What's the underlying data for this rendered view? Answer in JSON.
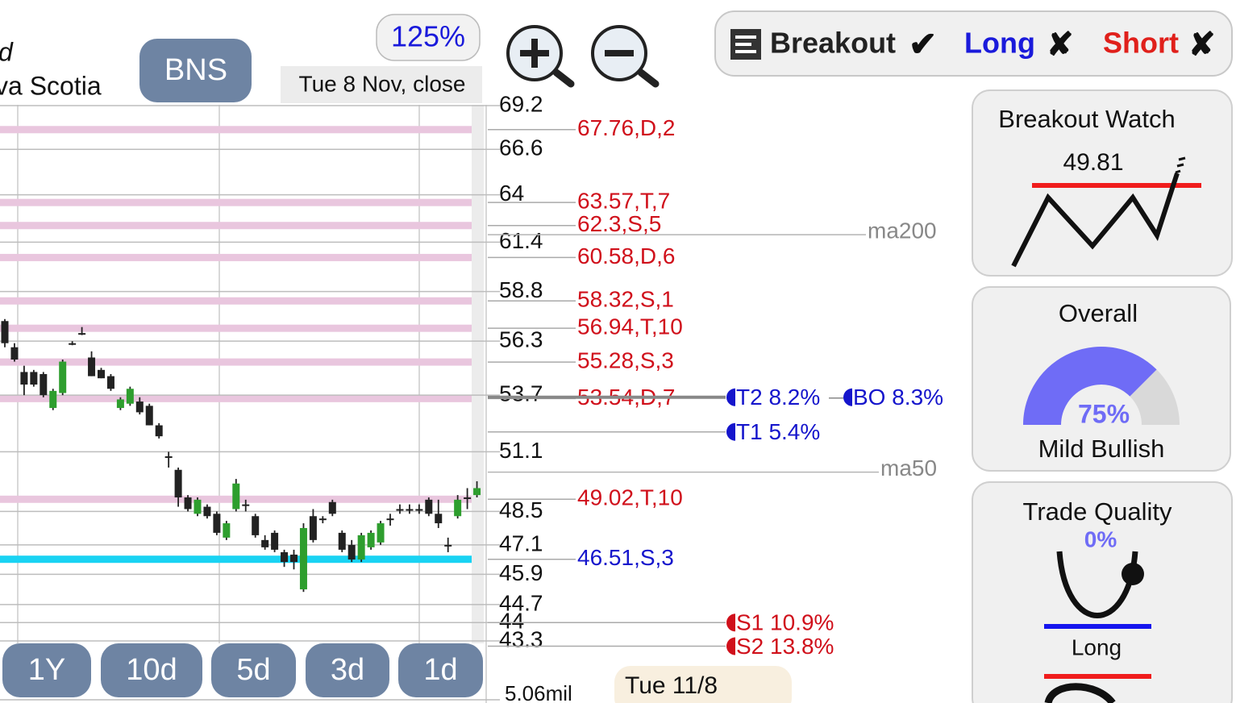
{
  "header": {
    "name_fragment_1": "d",
    "name_fragment_2": "va Scotia",
    "ticker": "BNS",
    "zoom": "125%",
    "date": "Tue 8 Nov, close"
  },
  "signals": [
    {
      "label": "Breakout",
      "mark": "✔",
      "color": "#222222"
    },
    {
      "label": "Long",
      "mark": "✘",
      "color": "#1a1adb"
    },
    {
      "label": "Short",
      "mark": "✘",
      "color": "#e0201b"
    }
  ],
  "chart_data": {
    "type": "candlestick",
    "categories": [
      null,
      null,
      null,
      null,
      null,
      null,
      null,
      null,
      null,
      null,
      null,
      null,
      null,
      null,
      null,
      null,
      null,
      null,
      null,
      null,
      null,
      null,
      null,
      null,
      null,
      null,
      null,
      null,
      null,
      null,
      null,
      null,
      null,
      null,
      null,
      null,
      null,
      null,
      null,
      null,
      null,
      null,
      null,
      null,
      null,
      null,
      null,
      null,
      null,
      null
    ],
    "open": [
      57.3,
      56.0,
      54.8,
      54.8,
      54.7,
      53.1,
      53.8,
      56.2,
      56.7,
      55.5,
      54.9,
      54.6,
      53.1,
      53.3,
      53.4,
      53.2,
      52.3,
      50.9,
      50.3,
      49.1,
      48.4,
      48.7,
      48.4,
      47.4,
      48.6,
      48.8,
      48.3,
      47.3,
      47.6,
      46.8,
      46.7,
      45.3,
      48.3,
      48.2,
      48.9,
      47.6,
      47.1,
      46.5,
      47.0,
      47.2,
      48.2,
      48.6,
      48.6,
      48.6,
      49.0,
      48.4,
      47.1,
      48.3,
      49.1,
      49.2
    ],
    "high": [
      57.4,
      56.2,
      55.1,
      54.9,
      54.8,
      54.0,
      55.4,
      56.3,
      57.0,
      55.8,
      55.0,
      54.7,
      53.6,
      54.1,
      53.6,
      53.3,
      52.4,
      51.1,
      50.4,
      49.2,
      49.1,
      48.8,
      48.5,
      48.1,
      49.9,
      49.0,
      48.4,
      47.5,
      47.7,
      46.9,
      46.9,
      48.0,
      48.6,
      48.3,
      49.0,
      47.7,
      47.3,
      47.6,
      47.7,
      48.1,
      48.4,
      48.8,
      48.8,
      48.8,
      49.1,
      49.0,
      47.4,
      49.2,
      49.5,
      49.8
    ],
    "low": [
      56.0,
      55.3,
      53.7,
      54.1,
      53.6,
      53.0,
      53.7,
      56.1,
      56.6,
      54.6,
      54.5,
      53.9,
      53.0,
      53.2,
      52.8,
      52.3,
      51.7,
      50.4,
      48.7,
      48.5,
      48.3,
      48.2,
      47.5,
      47.3,
      48.5,
      48.5,
      47.4,
      46.9,
      46.8,
      46.2,
      46.1,
      45.2,
      47.2,
      48.0,
      48.3,
      46.8,
      46.4,
      46.4,
      46.9,
      47.1,
      47.9,
      48.4,
      48.4,
      48.4,
      48.3,
      47.8,
      46.8,
      48.2,
      48.6,
      49.1
    ],
    "close": [
      56.2,
      55.4,
      54.2,
      54.2,
      53.7,
      53.9,
      55.3,
      56.2,
      56.7,
      54.6,
      54.5,
      54.0,
      53.5,
      54.0,
      52.9,
      52.3,
      51.8,
      50.9,
      49.1,
      48.6,
      49.0,
      48.3,
      47.6,
      48.0,
      49.7,
      48.8,
      47.5,
      47.0,
      46.9,
      46.4,
      46.4,
      47.8,
      47.3,
      48.2,
      48.4,
      46.9,
      46.5,
      47.5,
      47.6,
      48.0,
      48.2,
      48.6,
      48.6,
      48.6,
      48.4,
      48.0,
      47.1,
      49.0,
      49.1,
      49.5
    ],
    "up_color": "#2e9e2e",
    "down_color": "#222222",
    "ylim": [
      43.3,
      69.2
    ],
    "log_scale": true,
    "yticks": [
      69.2,
      66.6,
      64,
      61.4,
      58.8,
      56.3,
      53.7,
      51.1,
      48.5,
      47.1,
      45.9,
      44.7,
      44,
      43.3
    ],
    "levels": [
      {
        "value": 67.76,
        "label": "67.76,D,2",
        "color": "#d0101b",
        "band_color": "#e9c6de"
      },
      {
        "value": 63.57,
        "label": "63.57,T,7",
        "color": "#d0101b",
        "band_color": "#e9c6de"
      },
      {
        "value": 62.3,
        "label": "62.3,S,5",
        "color": "#d0101b",
        "band_color": "#e9c6de"
      },
      {
        "value": 60.58,
        "label": "60.58,D,6",
        "color": "#d0101b",
        "band_color": "#e9c6de"
      },
      {
        "value": 58.32,
        "label": "58.32,S,1",
        "color": "#d0101b",
        "band_color": "#e9c6de"
      },
      {
        "value": 56.94,
        "label": "56.94,T,10",
        "color": "#d0101b",
        "band_color": "#e9c6de"
      },
      {
        "value": 55.28,
        "label": "55.28,S,3",
        "color": "#d0101b",
        "band_color": "#e9c6de"
      },
      {
        "value": 53.54,
        "label": "53.54,D,7",
        "color": "#d0101b",
        "band_color": "#e9c6de"
      },
      {
        "value": 49.02,
        "label": "49.02,T,10",
        "color": "#d0101b",
        "band_color": "#e9c6de"
      },
      {
        "value": 46.51,
        "label": "46.51,S,3",
        "color": "#1515cc",
        "band_color": "#19d3f3"
      }
    ],
    "indicators": [
      {
        "label": "ma200",
        "value": 61.8
      },
      {
        "label": "ma50",
        "value": 50.2
      }
    ],
    "targets": [
      {
        "label": "T2 8.2%",
        "value": 53.6,
        "color": "#1515cc"
      },
      {
        "label": "BO 8.3%",
        "value": 53.6,
        "color": "#1515cc"
      },
      {
        "label": "T1 5.4%",
        "value": 52.0,
        "color": "#1515cc"
      },
      {
        "label": "S1 10.9%",
        "value": 44.0,
        "color": "#d0101b"
      },
      {
        "label": "S2 13.8%",
        "value": 43.1,
        "color": "#d0101b"
      }
    ],
    "volume_label": "5.06mil"
  },
  "range_buttons": [
    "1Y",
    "10d",
    "5d",
    "3d",
    "1d"
  ],
  "cursor_date": "Tue 11/8",
  "panels": {
    "breakout_watch": {
      "title": "Breakout Watch",
      "price": 49.81
    },
    "overall": {
      "title": "Overall",
      "score": {
        "value": 75,
        "label": "75%"
      },
      "verdict": "Mild Bullish",
      "color": "#6f6cf6"
    },
    "trade_quality": {
      "title": "Trade Quality",
      "score": {
        "value": 0,
        "label": "0%"
      },
      "side": "Long",
      "color": "#6f6cf6"
    }
  }
}
